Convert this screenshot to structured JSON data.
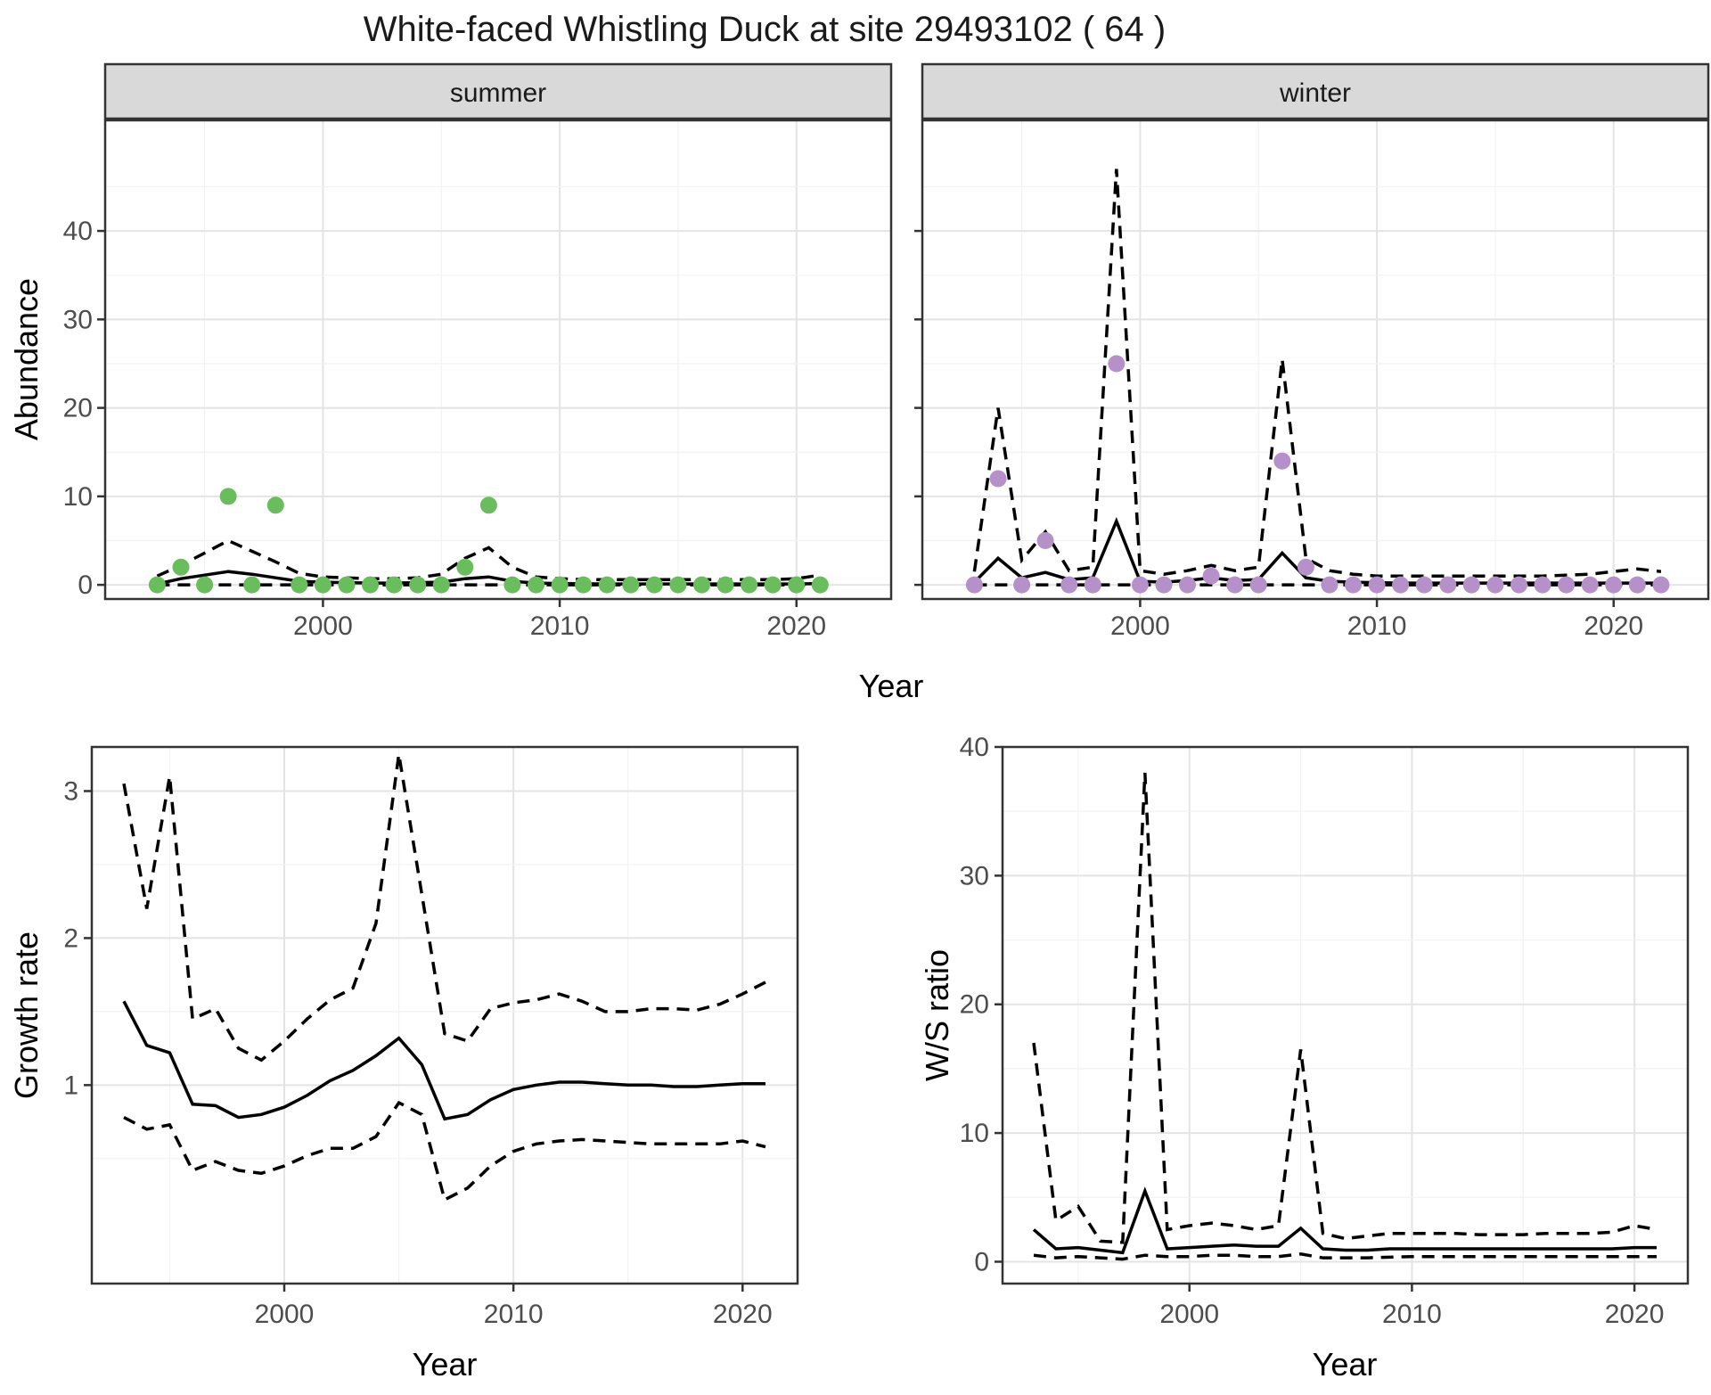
{
  "title": "White-faced Whistling Duck at site 29493102 ( 64 )",
  "colors": {
    "summer_point": "#6abd5c",
    "winter_point": "#b690c9",
    "line": "#000000",
    "strip_fill": "#d9d9d9",
    "panel_border": "#333333",
    "grid_major": "#e4e4e4",
    "grid_minor": "#f2f2f2",
    "axis_text": "#4d4d4d",
    "title_text": "#1a1a1a"
  },
  "chart_data": [
    {
      "id": "abundance-summer",
      "type": "scatter",
      "facet_label": "summer",
      "xlabel": "Year",
      "ylabel": "Abundance",
      "xticks": [
        2000,
        2010,
        2020
      ],
      "yticks": [
        0,
        10,
        20,
        30,
        40
      ],
      "xlim": [
        1990.8,
        2024.0
      ],
      "ylim": [
        -1.6,
        52.5
      ],
      "grid": true,
      "legend": "none",
      "x": [
        1993,
        1994,
        1995,
        1996,
        1997,
        1998,
        1999,
        2000,
        2001,
        2002,
        2003,
        2004,
        2005,
        2006,
        2007,
        2008,
        2009,
        2010,
        2011,
        2012,
        2013,
        2014,
        2015,
        2016,
        2017,
        2018,
        2019,
        2020,
        2021
      ],
      "series": [
        {
          "name": "observed-count",
          "style": "points",
          "values": [
            0,
            2,
            0,
            10,
            0,
            9,
            0,
            0,
            0,
            0,
            0,
            0,
            0,
            2,
            9,
            0,
            0,
            0,
            0,
            0,
            0,
            0,
            0,
            0,
            0,
            0,
            0,
            0,
            0
          ]
        },
        {
          "name": "model-fit",
          "style": "solid",
          "values": [
            0.1,
            0.7,
            1.1,
            1.5,
            1.2,
            0.8,
            0.4,
            0.3,
            0.25,
            0.2,
            0.2,
            0.25,
            0.3,
            0.7,
            0.9,
            0.4,
            0.2,
            0.15,
            0.12,
            0.1,
            0.1,
            0.1,
            0.1,
            0.1,
            0.1,
            0.1,
            0.1,
            0.1,
            0.15
          ]
        },
        {
          "name": "upper-ci",
          "style": "dashed",
          "values": [
            1.0,
            2.2,
            3.6,
            5.0,
            3.8,
            2.6,
            1.3,
            0.9,
            0.8,
            0.7,
            0.7,
            0.8,
            1.2,
            3.0,
            4.2,
            2.0,
            0.9,
            0.7,
            0.6,
            0.6,
            0.6,
            0.6,
            0.6,
            0.6,
            0.6,
            0.6,
            0.6,
            0.7,
            1.1
          ]
        },
        {
          "name": "lower-ci",
          "style": "dashed",
          "values": [
            0,
            0,
            0,
            0,
            0,
            0,
            0,
            0,
            0,
            0,
            0,
            0,
            0,
            0,
            0,
            0,
            0,
            0,
            0,
            0,
            0,
            0,
            0,
            0,
            0,
            0,
            0,
            0,
            0
          ]
        }
      ]
    },
    {
      "id": "abundance-winter",
      "type": "scatter",
      "facet_label": "winter",
      "xlabel": "Year",
      "ylabel": "Abundance",
      "xticks": [
        2000,
        2010,
        2020
      ],
      "yticks": [
        0,
        10,
        20,
        30,
        40
      ],
      "xlim": [
        1990.8,
        2024.0
      ],
      "ylim": [
        -1.6,
        52.5
      ],
      "grid": true,
      "legend": "none",
      "x": [
        1993,
        1994,
        1995,
        1996,
        1997,
        1998,
        1999,
        2000,
        2001,
        2002,
        2003,
        2004,
        2005,
        2006,
        2007,
        2008,
        2009,
        2010,
        2011,
        2012,
        2013,
        2014,
        2015,
        2016,
        2017,
        2018,
        2019,
        2020,
        2021,
        2022
      ],
      "series": [
        {
          "name": "observed-count",
          "style": "points",
          "values": [
            0,
            12,
            0,
            5,
            0,
            0,
            25,
            0,
            0,
            0,
            1,
            0,
            0,
            14,
            2,
            0,
            0,
            0,
            0,
            0,
            0,
            0,
            0,
            0,
            0,
            0,
            0,
            0,
            0,
            0
          ]
        },
        {
          "name": "model-fit",
          "style": "solid",
          "values": [
            0.3,
            3.0,
            0.8,
            1.4,
            0.6,
            0.8,
            7.2,
            0.4,
            0.3,
            0.5,
            0.8,
            0.5,
            0.6,
            3.6,
            0.8,
            0.4,
            0.3,
            0.25,
            0.2,
            0.2,
            0.2,
            0.2,
            0.2,
            0.2,
            0.2,
            0.2,
            0.2,
            0.2,
            0.2,
            0.2
          ]
        },
        {
          "name": "upper-ci",
          "style": "dashed",
          "values": [
            1.5,
            20,
            2.8,
            6.0,
            1.6,
            2.0,
            47,
            1.6,
            1.2,
            1.6,
            2.2,
            1.6,
            2.0,
            25.5,
            3.0,
            1.6,
            1.2,
            1.0,
            1.0,
            1.0,
            1.0,
            1.0,
            1.0,
            1.0,
            1.0,
            1.1,
            1.2,
            1.5,
            1.8,
            1.5
          ]
        },
        {
          "name": "lower-ci",
          "style": "dashed",
          "values": [
            0,
            0,
            0,
            0,
            0,
            0,
            0,
            0,
            0,
            0,
            0,
            0,
            0,
            0,
            0,
            0,
            0,
            0,
            0,
            0,
            0,
            0,
            0,
            0,
            0,
            0,
            0,
            0,
            0,
            0
          ]
        }
      ]
    },
    {
      "id": "growth-rate",
      "type": "line",
      "facet_label": "",
      "xlabel": "Year",
      "ylabel": "Growth rate",
      "xticks": [
        2000,
        2010,
        2020
      ],
      "yticks": [
        1,
        2,
        3
      ],
      "xlim": [
        1991.6,
        2022.4
      ],
      "ylim": [
        -0.35,
        3.3
      ],
      "grid": true,
      "legend": "none",
      "x": [
        1993,
        1994,
        1995,
        1996,
        1997,
        1998,
        1999,
        2000,
        2001,
        2002,
        2003,
        2004,
        2005,
        2006,
        2007,
        2008,
        2009,
        2010,
        2011,
        2012,
        2013,
        2014,
        2015,
        2016,
        2017,
        2018,
        2019,
        2020,
        2021
      ],
      "series": [
        {
          "name": "model-fit",
          "style": "solid",
          "values": [
            1.57,
            1.27,
            1.22,
            0.87,
            0.86,
            0.78,
            0.8,
            0.85,
            0.93,
            1.03,
            1.1,
            1.2,
            1.32,
            1.14,
            0.77,
            0.8,
            0.9,
            0.97,
            1.0,
            1.02,
            1.02,
            1.01,
            1.0,
            1.0,
            0.99,
            0.99,
            1.0,
            1.01,
            1.01
          ]
        },
        {
          "name": "upper-ci",
          "style": "dashed",
          "values": [
            3.05,
            2.2,
            3.1,
            1.45,
            1.52,
            1.25,
            1.17,
            1.3,
            1.45,
            1.58,
            1.66,
            2.1,
            3.25,
            2.3,
            1.35,
            1.3,
            1.52,
            1.56,
            1.58,
            1.62,
            1.57,
            1.5,
            1.5,
            1.52,
            1.52,
            1.51,
            1.55,
            1.62,
            1.7
          ]
        },
        {
          "name": "lower-ci",
          "style": "dashed",
          "values": [
            0.78,
            0.7,
            0.73,
            0.42,
            0.48,
            0.42,
            0.4,
            0.45,
            0.52,
            0.57,
            0.57,
            0.65,
            0.88,
            0.8,
            0.22,
            0.3,
            0.45,
            0.55,
            0.6,
            0.62,
            0.63,
            0.62,
            0.61,
            0.6,
            0.6,
            0.6,
            0.6,
            0.62,
            0.58
          ]
        }
      ]
    },
    {
      "id": "ws-ratio",
      "type": "line",
      "facet_label": "",
      "xlabel": "Year",
      "ylabel": "W/S ratio",
      "xticks": [
        2000,
        2010,
        2020
      ],
      "yticks": [
        0,
        10,
        20,
        30,
        40
      ],
      "xlim": [
        1991.6,
        2022.4
      ],
      "ylim": [
        -1.7,
        40.0
      ],
      "grid": true,
      "legend": "none",
      "x": [
        1993,
        1994,
        1995,
        1996,
        1997,
        1998,
        1999,
        2000,
        2001,
        2002,
        2003,
        2004,
        2005,
        2006,
        2007,
        2008,
        2009,
        2010,
        2011,
        2012,
        2013,
        2014,
        2015,
        2016,
        2017,
        2018,
        2019,
        2020,
        2021
      ],
      "series": [
        {
          "name": "model-fit",
          "style": "solid",
          "values": [
            2.5,
            1.0,
            1.1,
            0.9,
            0.7,
            5.5,
            1.0,
            1.1,
            1.2,
            1.3,
            1.2,
            1.2,
            2.6,
            1.0,
            0.9,
            0.9,
            1.0,
            1.0,
            1.0,
            1.0,
            1.0,
            1.0,
            1.0,
            1.0,
            1.0,
            1.0,
            1.0,
            1.1,
            1.1
          ]
        },
        {
          "name": "upper-ci",
          "style": "dashed",
          "values": [
            17,
            3.2,
            4.3,
            1.6,
            1.5,
            38,
            2.5,
            2.8,
            3.0,
            2.8,
            2.5,
            2.8,
            16.5,
            2.2,
            1.8,
            2.0,
            2.2,
            2.2,
            2.2,
            2.2,
            2.1,
            2.1,
            2.1,
            2.2,
            2.2,
            2.2,
            2.3,
            2.8,
            2.5
          ]
        },
        {
          "name": "lower-ci",
          "style": "dashed",
          "values": [
            0.5,
            0.3,
            0.4,
            0.3,
            0.2,
            0.5,
            0.4,
            0.4,
            0.5,
            0.5,
            0.4,
            0.4,
            0.6,
            0.3,
            0.3,
            0.3,
            0.35,
            0.4,
            0.4,
            0.4,
            0.4,
            0.4,
            0.4,
            0.4,
            0.4,
            0.4,
            0.4,
            0.4,
            0.4
          ]
        }
      ]
    }
  ]
}
